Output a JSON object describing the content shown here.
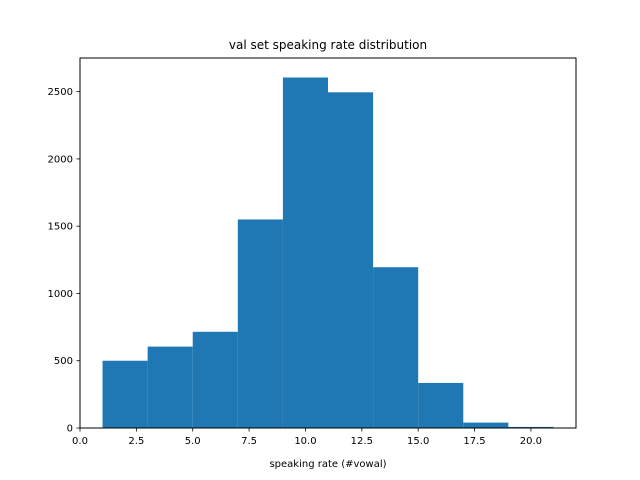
{
  "chart_data": {
    "type": "bar",
    "title": "val set speaking rate distribution",
    "xlabel": "speaking rate (#vowal)",
    "ylabel": "",
    "xlim": [
      0,
      22
    ],
    "ylim": [
      0,
      2750
    ],
    "grid": false,
    "bar_color": "#1f77b4",
    "bins": [
      {
        "x0": 1.0,
        "x1": 3.0,
        "count": 500
      },
      {
        "x0": 3.0,
        "x1": 5.0,
        "count": 605
      },
      {
        "x0": 5.0,
        "x1": 7.0,
        "count": 715
      },
      {
        "x0": 7.0,
        "x1": 9.0,
        "count": 1550
      },
      {
        "x0": 9.0,
        "x1": 11.0,
        "count": 2605
      },
      {
        "x0": 11.0,
        "x1": 13.0,
        "count": 2495
      },
      {
        "x0": 13.0,
        "x1": 15.0,
        "count": 1195
      },
      {
        "x0": 15.0,
        "x1": 17.0,
        "count": 335
      },
      {
        "x0": 17.0,
        "x1": 19.0,
        "count": 40
      },
      {
        "x0": 19.0,
        "x1": 21.0,
        "count": 8
      }
    ],
    "xticks": [
      {
        "value": 0.0,
        "label": "0.0"
      },
      {
        "value": 2.5,
        "label": "2.5"
      },
      {
        "value": 5.0,
        "label": "5.0"
      },
      {
        "value": 7.5,
        "label": "7.5"
      },
      {
        "value": 10.0,
        "label": "10.0"
      },
      {
        "value": 12.5,
        "label": "12.5"
      },
      {
        "value": 15.0,
        "label": "15.0"
      },
      {
        "value": 17.5,
        "label": "17.5"
      },
      {
        "value": 20.0,
        "label": "20.0"
      }
    ],
    "yticks": [
      {
        "value": 0,
        "label": "0"
      },
      {
        "value": 500,
        "label": "500"
      },
      {
        "value": 1000,
        "label": "1000"
      },
      {
        "value": 1500,
        "label": "1500"
      },
      {
        "value": 2000,
        "label": "2000"
      },
      {
        "value": 2500,
        "label": "2500"
      }
    ]
  }
}
